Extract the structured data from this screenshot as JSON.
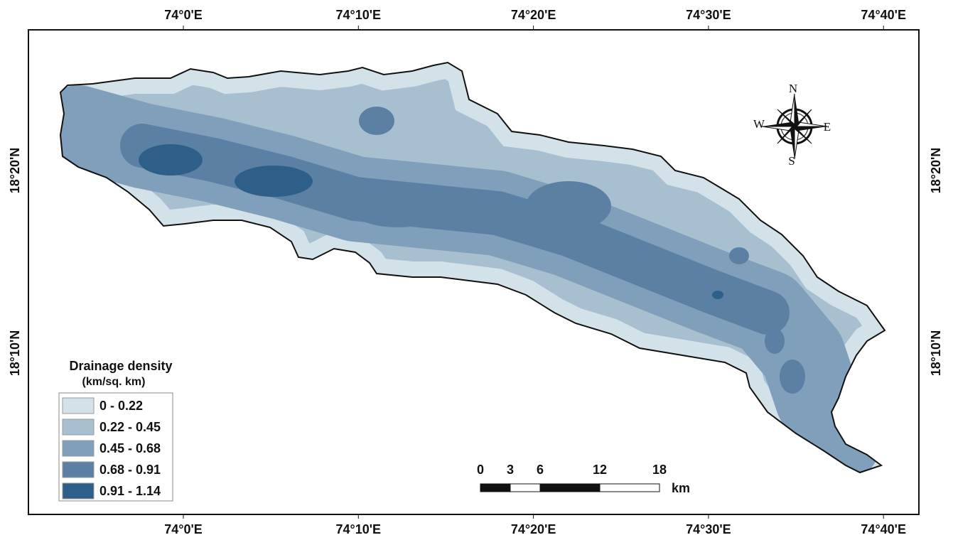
{
  "map": {
    "longitude_labels": [
      "74°0'E",
      "74°10'E",
      "74°20'E",
      "74°30'E",
      "74°40'E"
    ],
    "latitude_labels": [
      "18°20'N",
      "18°10'N"
    ],
    "legend": {
      "title": "Drainage density",
      "subtitle": "(km/sq. km)",
      "classes": [
        {
          "label": "0 - 0.22",
          "color": "#d3e2e9"
        },
        {
          "label": "0.22 - 0.45",
          "color": "#a8bfd0"
        },
        {
          "label": "0.45 - 0.68",
          "color": "#7f9fbb"
        },
        {
          "label": "0.68 - 0.91",
          "color": "#5b80a3"
        },
        {
          "label": "0.91 - 1.14",
          "color": "#2e5f88"
        }
      ]
    },
    "scale_bar": {
      "labels": [
        "0",
        "3",
        "6",
        "12",
        "18"
      ],
      "unit": "km"
    },
    "compass": {
      "north": "N",
      "south": "S",
      "east": "E",
      "west": "W"
    }
  }
}
